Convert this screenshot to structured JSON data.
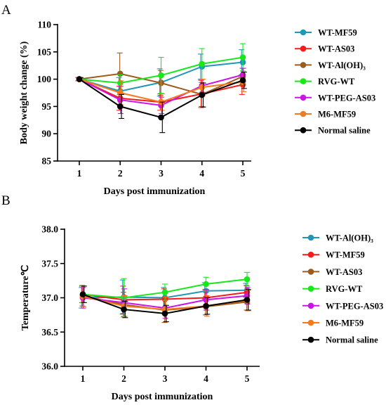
{
  "chart_data": [
    {
      "panel": "A",
      "type": "line",
      "title": "",
      "xlabel": "Days post immunization",
      "ylabel": "Body weight change (%)",
      "x": [
        1,
        2,
        3,
        4,
        5
      ],
      "x_ticks": [
        "1",
        "2",
        "3",
        "4",
        "5"
      ],
      "ylim": [
        85,
        110
      ],
      "y_ticks": [
        "85",
        "90",
        "95",
        "100",
        "105",
        "110"
      ],
      "grid": false,
      "legend_position": "right",
      "series": [
        {
          "name": "WT-MF59",
          "color": "#1f97b6",
          "values": [
            100,
            97.8,
            99.4,
            102.3,
            103.1
          ],
          "errors": [
            0.3,
            2.5,
            2.5,
            2.3,
            2.3
          ]
        },
        {
          "name": "WT-AS03",
          "color": "#f51c1c",
          "values": [
            100,
            96.5,
            95.8,
            97.3,
            99.0
          ],
          "errors": [
            0.3,
            2.2,
            1.5,
            2.5,
            1.8
          ]
        },
        {
          "name": "WT-Al(OH)₃",
          "color": "#9b5d1c",
          "values": [
            100,
            101.0,
            99.3,
            97.2,
            100.5
          ],
          "errors": [
            0.3,
            3.8,
            2.3,
            2.2,
            1.5
          ]
        },
        {
          "name": "RVG-WT",
          "color": "#18e81a",
          "values": [
            100,
            99.3,
            100.7,
            102.8,
            104.0
          ],
          "errors": [
            0.3,
            1.5,
            3.3,
            2.8,
            2.5
          ]
        },
        {
          "name": "WT-PEG-AS03",
          "color": "#cc14e6",
          "values": [
            100,
            96.2,
            95.2,
            98.8,
            100.8
          ],
          "errors": [
            0.3,
            2.5,
            1.5,
            1.2,
            1.2
          ]
        },
        {
          "name": "M6-MF59",
          "color": "#f6791e",
          "values": [
            100,
            97.5,
            95.8,
            98.5,
            99.5
          ],
          "errors": [
            0.3,
            2.2,
            1.5,
            1.5,
            1.8
          ]
        },
        {
          "name": "Normal saline",
          "color": "#000000",
          "values": [
            100,
            95.0,
            93.0,
            97.1,
            99.8
          ],
          "errors": [
            0.3,
            2.2,
            2.8,
            2.2,
            1.5
          ]
        }
      ]
    },
    {
      "panel": "B",
      "type": "line",
      "title": "",
      "xlabel": "Days post immunization",
      "ylabel": "Temperature℃",
      "x": [
        1,
        2,
        3,
        4,
        5
      ],
      "x_ticks": [
        "1",
        "2",
        "3",
        "4",
        "5"
      ],
      "ylim": [
        36.0,
        38.0
      ],
      "y_ticks": [
        "36.0",
        "36.5",
        "37.0",
        "37.5",
        "38.0"
      ],
      "grid": false,
      "legend_position": "right",
      "series": [
        {
          "name": "WT-Al(OH)₃",
          "color": "#1f97b6",
          "values": [
            37.0,
            37.01,
            37.0,
            37.1,
            37.11
          ],
          "errors": [
            0.15,
            0.25,
            0.15,
            0.12,
            0.1
          ]
        },
        {
          "name": "WT-MF59",
          "color": "#f51c1c",
          "values": [
            37.05,
            36.97,
            36.98,
            37.0,
            37.08
          ],
          "errors": [
            0.12,
            0.2,
            0.15,
            0.12,
            0.1
          ]
        },
        {
          "name": "WT-AS03",
          "color": "#9b5d1c",
          "values": [
            37.03,
            36.9,
            36.82,
            36.87,
            36.94
          ],
          "errors": [
            0.15,
            0.18,
            0.18,
            0.12,
            0.12
          ]
        },
        {
          "name": "RVG-WT",
          "color": "#18e81a",
          "values": [
            37.05,
            37.0,
            37.08,
            37.2,
            37.27
          ],
          "errors": [
            0.12,
            0.28,
            0.12,
            0.1,
            0.1
          ]
        },
        {
          "name": "WT-PEG-AS03",
          "color": "#cc14e6",
          "values": [
            37.0,
            36.93,
            36.85,
            36.97,
            37.03
          ],
          "errors": [
            0.15,
            0.2,
            0.15,
            0.15,
            0.12
          ]
        },
        {
          "name": "M6-MF59",
          "color": "#f6791e",
          "values": [
            37.02,
            36.88,
            36.83,
            36.88,
            36.96
          ],
          "errors": [
            0.15,
            0.15,
            0.18,
            0.15,
            0.15
          ]
        },
        {
          "name": "Normal saline",
          "color": "#000000",
          "values": [
            37.05,
            36.83,
            36.77,
            36.88,
            36.97
          ],
          "errors": [
            0.12,
            0.12,
            0.12,
            0.12,
            0.15
          ]
        }
      ]
    }
  ]
}
